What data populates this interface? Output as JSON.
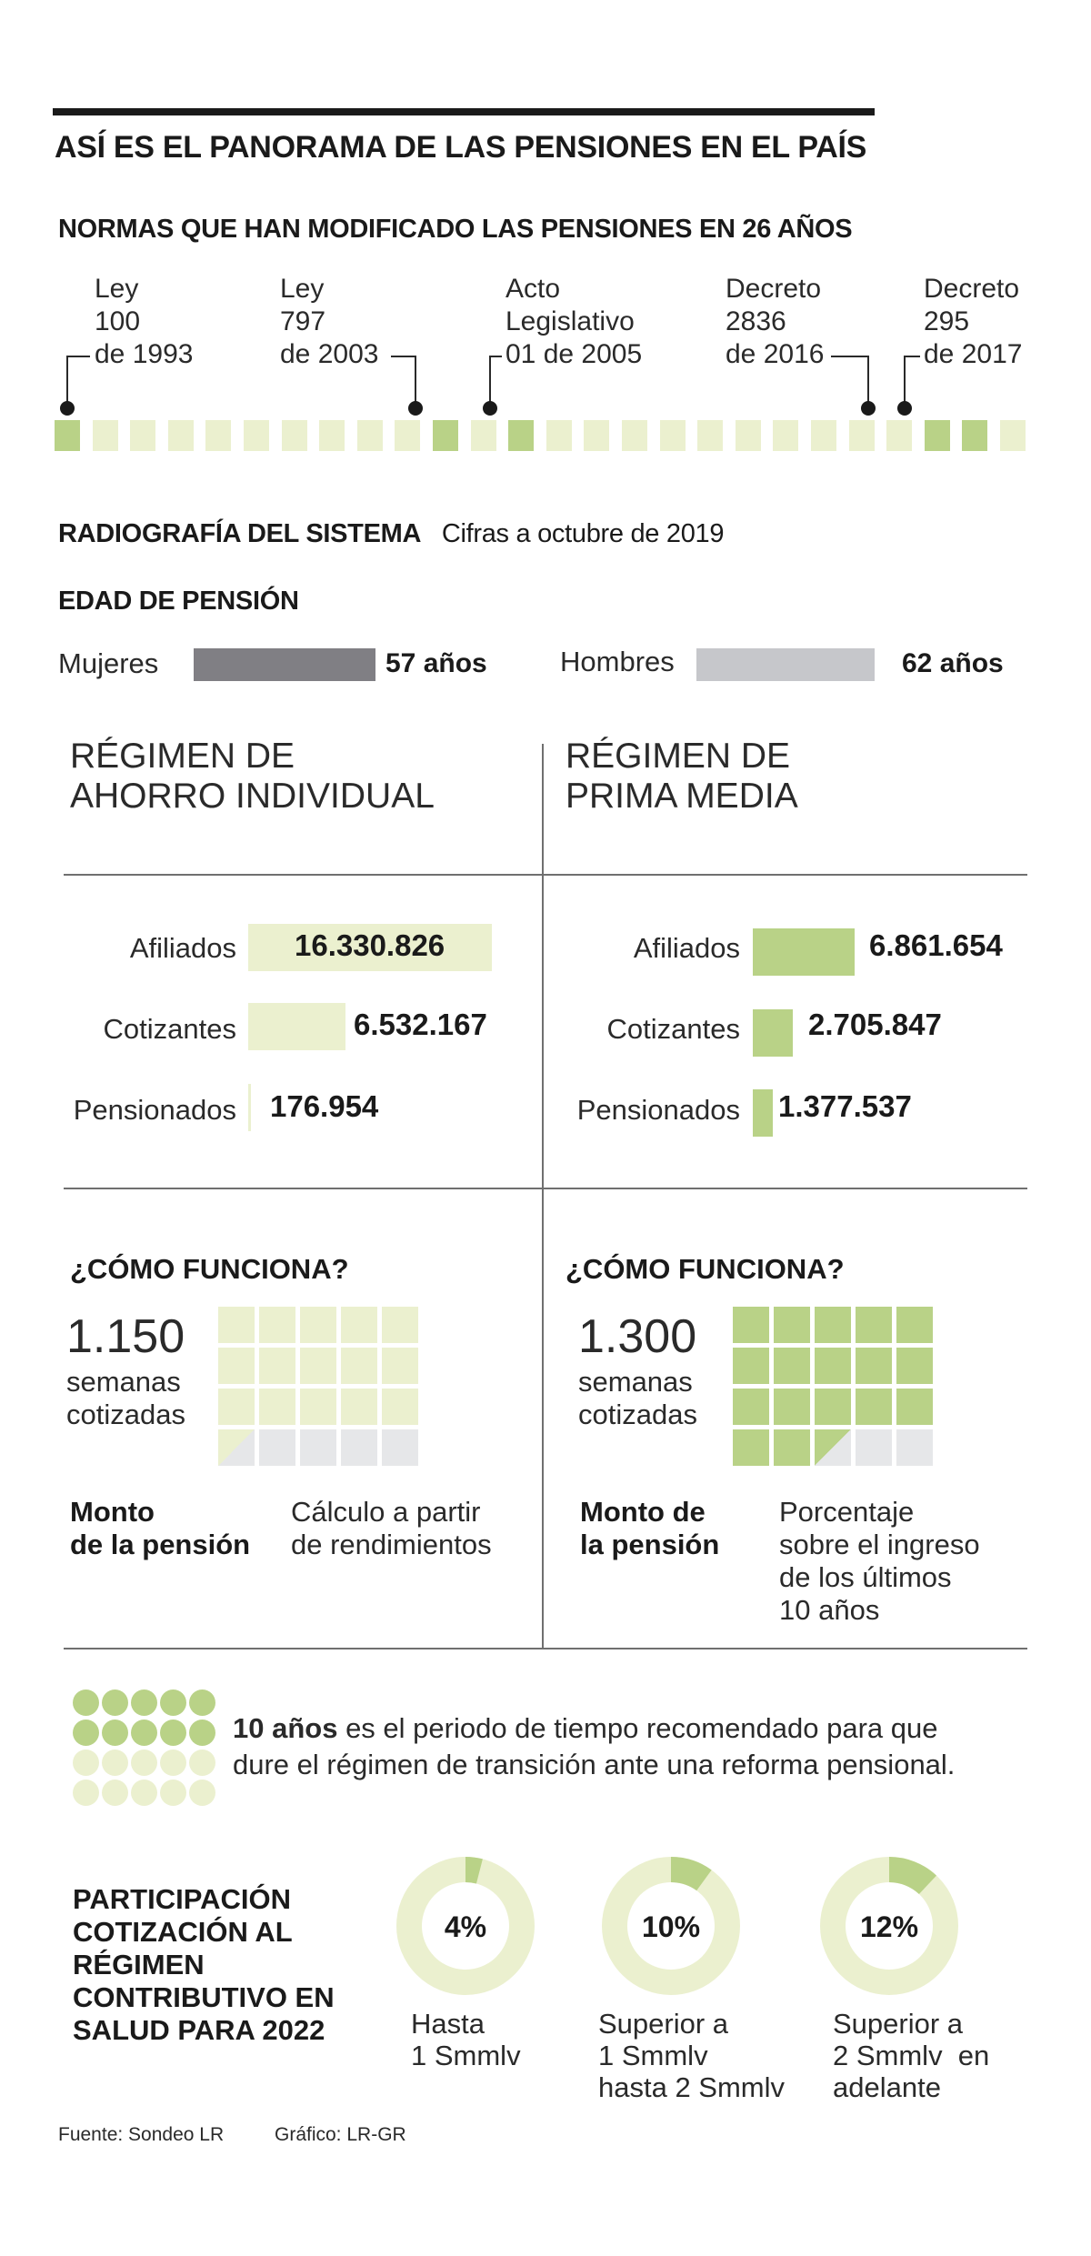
{
  "title": "ASÍ ES EL PANORAMA DE LAS PENSIONES EN EL PAÍS",
  "normas": {
    "heading": "NORMAS QUE HAN MODIFICADO LAS PENSIONES EN 26 AÑOS",
    "years_span": 26,
    "highlighted_squares": [
      0,
      10,
      12,
      23,
      24
    ],
    "items": [
      {
        "label": "Ley\n100\nde 1993"
      },
      {
        "label": "Ley\n797\nde 2003"
      },
      {
        "label": "Acto\nLegislativo\n01 de 2005"
      },
      {
        "label": "Decreto\n2836\nde 2016"
      },
      {
        "label": "Decreto\n295\nde 2017"
      }
    ]
  },
  "radiografia": {
    "heading": "RADIOGRAFÍA DEL SISTEMA",
    "subheading": "Cifras a octubre de 2019"
  },
  "edad": {
    "heading": "EDAD DE PENSIÓN",
    "mujeres": {
      "label": "Mujeres",
      "value": "57 años",
      "years": 57
    },
    "hombres": {
      "label": "Hombres",
      "value": "62 años",
      "years": 62
    }
  },
  "regimen_ahorro": {
    "title": "RÉGIMEN DE\nAHORRO INDIVIDUAL",
    "rows": [
      {
        "label": "Afiliados",
        "value": "16.330.826",
        "number": 16330826
      },
      {
        "label": "Cotizantes",
        "value": "6.532.167",
        "number": 6532167
      },
      {
        "label": "Pensionados",
        "value": "176.954",
        "number": 176954
      }
    ],
    "howto": "¿CÓMO FUNCIONA?",
    "weeks_number": "1.150",
    "weeks_text": "semanas\ncotizadas",
    "weeks": 1150,
    "monto_label": "Monto\nde la pensión",
    "monto_desc": "Cálculo a partir\nde rendimientos"
  },
  "regimen_prima": {
    "title": "RÉGIMEN DE\nPRIMA MEDIA",
    "rows": [
      {
        "label": "Afiliados",
        "value": "6.861.654",
        "number": 6861654
      },
      {
        "label": "Cotizantes",
        "value": "2.705.847",
        "number": 2705847
      },
      {
        "label": "Pensionados",
        "value": "1.377.537",
        "number": 1377537
      }
    ],
    "howto": "¿CÓMO FUNCIONA?",
    "weeks_number": "1.300",
    "weeks_text": "semanas\ncotizadas",
    "weeks": 1300,
    "monto_label": "Monto de\nla pensión",
    "monto_desc": "Porcentaje\nsobre el ingreso\nde los últimos\n10 años"
  },
  "transicion": {
    "years": 10,
    "total_dots": 20,
    "bold": "10 años",
    "text": " es el periodo de tiempo recomendado para que\ndure el régimen de transición ante una reforma pensional."
  },
  "participacion": {
    "title": "PARTICIPACIÓN\nCOTIZACIÓN AL\nRÉGIMEN\nCONTRIBUTIVO EN\nSALUD PARA 2022",
    "items": [
      {
        "label": "4%",
        "pct": 4,
        "caption": "Hasta\n1 Smmlv"
      },
      {
        "label": "10%",
        "pct": 10,
        "caption": "Superior a\n1 Smmlv\nhasta 2 Smmlv"
      },
      {
        "label": "12%",
        "pct": 12,
        "caption": "Superior a\n2 Smmlv  en\nadelante"
      }
    ]
  },
  "footer": {
    "fuente": "Fuente: Sondeo LR",
    "grafico": "Gráfico: LR-GR"
  },
  "colors": {
    "green_strong": "#b9d287",
    "green_light": "#ebf0cf",
    "grey_dark": "#807f84",
    "grey_light": "#c6c7cb",
    "grey_cell": "#e6e7e9"
  }
}
